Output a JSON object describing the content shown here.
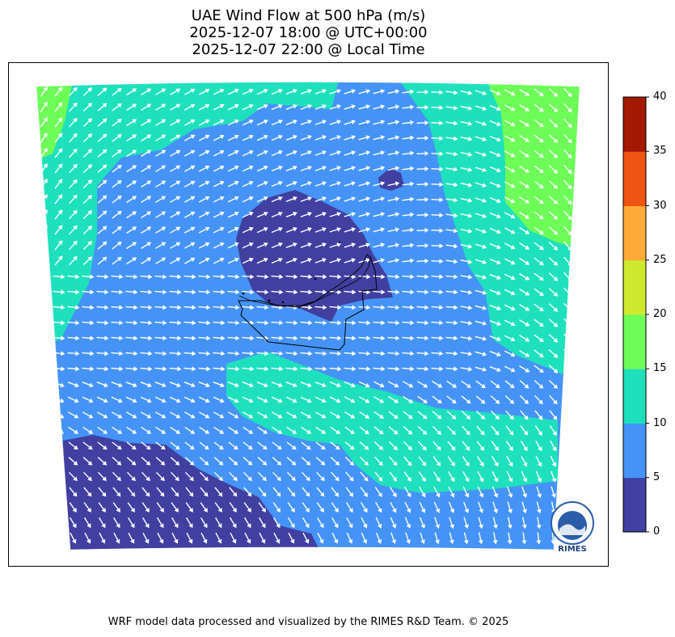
{
  "title": {
    "line1": "UAE Wind Flow at 500 hPa (m/s)",
    "line2": "2025-12-07 18:00 @ UTC+00:00",
    "line3": "2025-12-07 22:00 @ Local Time"
  },
  "colorbar": {
    "ticks": [
      "0",
      "5",
      "10",
      "15",
      "20",
      "25",
      "30",
      "35",
      "40"
    ],
    "colors": [
      "#413fa0",
      "#4593f6",
      "#1fe0bd",
      "#6dfc58",
      "#cfe92f",
      "#fcab36",
      "#ee5412",
      "#a41904"
    ]
  },
  "map": {
    "wind_speed_bins_ms": [
      0,
      5,
      10,
      15,
      20,
      25,
      30,
      35,
      40
    ],
    "arrow_color": "#ffffff",
    "border_color": "#000000"
  },
  "logo": {
    "text": "RIMES"
  },
  "footer": "WRF model data processed and visualized by the RIMES R&D Team. © 2025"
}
